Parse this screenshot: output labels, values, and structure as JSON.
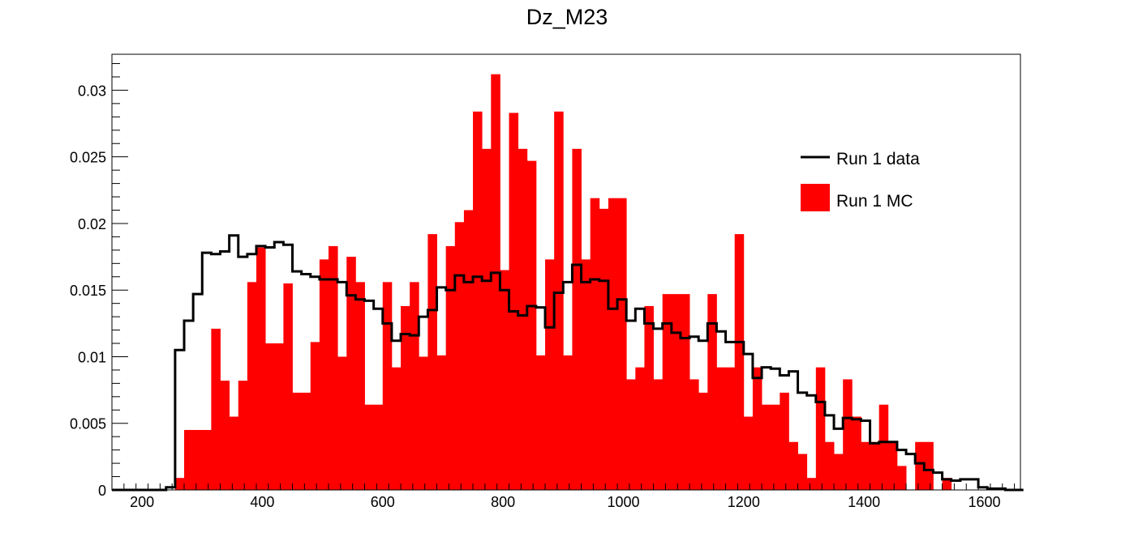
{
  "chart_data": {
    "type": "histogram",
    "title": "Dz_M23",
    "xlabel": "",
    "ylabel": "",
    "xlim": [
      150,
      1660
    ],
    "ylim": [
      0,
      0.0327
    ],
    "bin_start": 150,
    "bin_width": 15,
    "x_ticks": [
      200,
      400,
      600,
      800,
      1000,
      1200,
      1400,
      1600
    ],
    "x_tick_labels": [
      "200",
      "400",
      "600",
      "800",
      "1000",
      "1200",
      "1400",
      "1600"
    ],
    "y_ticks": [
      0,
      0.005,
      0.01,
      0.015,
      0.02,
      0.025,
      0.03
    ],
    "y_tick_labels": [
      "0",
      "0.005",
      "0.01",
      "0.015",
      "0.02",
      "0.025",
      "0.03"
    ],
    "legend_position": "top-right",
    "series": [
      {
        "name": "Run 1 data",
        "style": "step-line",
        "color": "#000000",
        "values": [
          0,
          0,
          0,
          0,
          0,
          0,
          0.0002,
          0.0105,
          0.0127,
          0.0147,
          0.0178,
          0.0177,
          0.0179,
          0.0191,
          0.0175,
          0.0177,
          0.0183,
          0.0182,
          0.0186,
          0.0184,
          0.0164,
          0.0162,
          0.016,
          0.0158,
          0.0158,
          0.0156,
          0.0146,
          0.0143,
          0.0142,
          0.0136,
          0.0125,
          0.0112,
          0.0117,
          0.0116,
          0.013,
          0.0135,
          0.0152,
          0.015,
          0.0161,
          0.0156,
          0.016,
          0.0157,
          0.0163,
          0.015,
          0.0134,
          0.0131,
          0.0138,
          0.0137,
          0.0122,
          0.0148,
          0.0156,
          0.0169,
          0.0156,
          0.0158,
          0.0157,
          0.0136,
          0.0143,
          0.0127,
          0.0136,
          0.0125,
          0.0121,
          0.0125,
          0.0118,
          0.0114,
          0.0115,
          0.0112,
          0.0125,
          0.0119,
          0.0111,
          0.0111,
          0.0102,
          0.0084,
          0.0092,
          0.0091,
          0.0086,
          0.0089,
          0.0073,
          0.0071,
          0.0066,
          0.0056,
          0.0046,
          0.0054,
          0.0053,
          0.0052,
          0.0035,
          0.0036,
          0.0036,
          0.003,
          0.0027,
          0.002,
          0.0015,
          0.0013,
          0.0008,
          0.0007,
          0.0008,
          0.0008,
          0.0002,
          0.0001,
          0.0001,
          0.0,
          0.0
        ]
      },
      {
        "name": "Run 1 MC",
        "style": "filled-bars",
        "color": "#ff0000",
        "values": [
          0,
          0,
          0,
          0,
          0,
          0,
          0,
          0.0009,
          0.0045,
          0.0045,
          0.0045,
          0.0121,
          0.0082,
          0.0055,
          0.0082,
          0.0156,
          0.0182,
          0.011,
          0.011,
          0.0155,
          0.0073,
          0.0073,
          0.0111,
          0.0173,
          0.0183,
          0.01,
          0.0175,
          0.0156,
          0.0064,
          0.0064,
          0.0156,
          0.0092,
          0.0138,
          0.0156,
          0.01,
          0.0192,
          0.0101,
          0.0183,
          0.0201,
          0.021,
          0.0284,
          0.0256,
          0.0312,
          0.0165,
          0.0283,
          0.0256,
          0.0247,
          0.0101,
          0.0173,
          0.0284,
          0.0101,
          0.0256,
          0.0173,
          0.0219,
          0.0211,
          0.0219,
          0.0219,
          0.0083,
          0.0092,
          0.0138,
          0.0083,
          0.0147,
          0.0147,
          0.0147,
          0.0083,
          0.0073,
          0.0147,
          0.0092,
          0.0092,
          0.0192,
          0.0055,
          0.0092,
          0.0064,
          0.0064,
          0.0073,
          0.0036,
          0.0027,
          0.0009,
          0.0092,
          0.0036,
          0.0027,
          0.0083,
          0.0055,
          0.0036,
          0.0036,
          0.0064,
          0.0036,
          0.0018,
          0.0,
          0.0036,
          0.0036,
          0.0,
          0.0009,
          0,
          0,
          0,
          0,
          0,
          0,
          0,
          0
        ]
      }
    ]
  }
}
